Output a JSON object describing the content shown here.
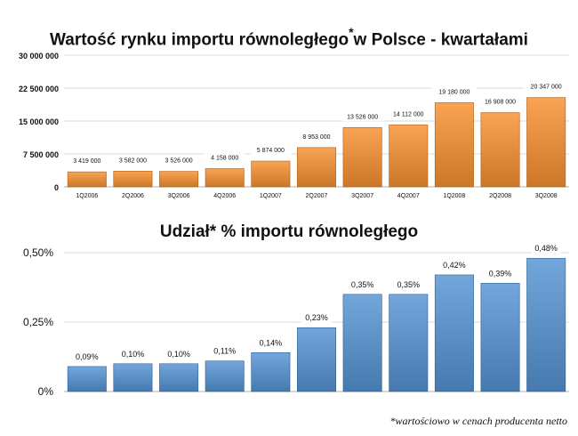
{
  "chart_data": [
    {
      "type": "bar",
      "title_main": "Wartość rynku importu równoległego",
      "title_mark": "*",
      "title_rest": "w Polsce - kwartałami",
      "categories": [
        "1Q2006",
        "2Q2006",
        "3Q2006",
        "4Q2006",
        "1Q2007",
        "2Q2007",
        "3Q2007",
        "4Q2007",
        "1Q2008",
        "2Q2008",
        "3Q2008"
      ],
      "values": [
        3419000,
        3582000,
        3526000,
        4158000,
        5874000,
        8953000,
        13526000,
        14112000,
        19180000,
        16908000,
        20347000
      ],
      "value_labels": [
        "3 419 000",
        "3 582 000",
        "3 526 000",
        "4 158 000",
        "5 874 000",
        "8 953 000",
        "13 526 000",
        "14 112 000",
        "19 180 000",
        "16 908 000",
        "20 347 000"
      ],
      "y_ticks": [
        0,
        7500000,
        15000000,
        22500000,
        30000000
      ],
      "y_tick_labels": [
        "0",
        "7 500 000",
        "15 000 000",
        "22 500 000",
        "30 000 000"
      ],
      "ylim": [
        0,
        30000000
      ],
      "grid": true,
      "color": "#e08a3c"
    },
    {
      "type": "bar",
      "title": "Udział* % importu równoległego",
      "values": [
        0.09,
        0.1,
        0.1,
        0.11,
        0.14,
        0.23,
        0.35,
        0.35,
        0.42,
        0.39,
        0.48
      ],
      "value_labels": [
        "0,09%",
        "0,10%",
        "0,10%",
        "0,11%",
        "0,14%",
        "0,23%",
        "0,35%",
        "0,35%",
        "0,42%",
        "0,39%",
        "0,48%"
      ],
      "y_ticks": [
        0,
        0.25,
        0.5
      ],
      "y_tick_labels": [
        "0%",
        "0,25%",
        "0,50%"
      ],
      "ylim": [
        0,
        0.5
      ],
      "grid": true,
      "color": "#5a8dc2"
    }
  ],
  "footnote": "*wartościowo w cenach producenta netto"
}
